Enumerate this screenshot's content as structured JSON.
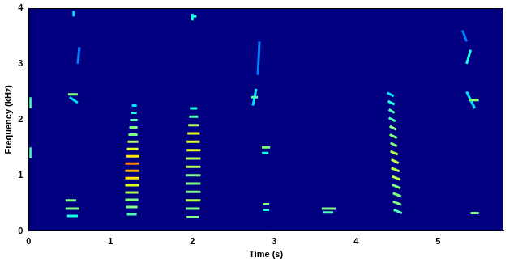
{
  "chart_data": {
    "type": "spectrogram",
    "x_label": "Time (s)",
    "y_label": "Frequency (kHz)",
    "xlim": [
      0,
      5.8
    ],
    "xticks": [
      0,
      1,
      2,
      3,
      4,
      5
    ],
    "ylim": [
      0,
      4
    ],
    "yticks": [
      0,
      1,
      2,
      3,
      4
    ],
    "zlim": [
      0,
      1
    ],
    "grid": false,
    "marks": [
      {
        "time": [
          0.02,
          0.02
        ],
        "frequency": [
          1.3,
          1.5
        ],
        "level": 0.45
      },
      {
        "time": [
          0.02,
          0.02
        ],
        "frequency": [
          2.2,
          2.4
        ],
        "level": 0.45
      },
      {
        "time": [
          0.45,
          0.58
        ],
        "frequency": [
          0.55,
          0.55
        ],
        "level": 0.5
      },
      {
        "time": [
          0.45,
          0.62
        ],
        "frequency": [
          0.4,
          0.4
        ],
        "level": 0.5
      },
      {
        "time": [
          0.47,
          0.6
        ],
        "frequency": [
          0.27,
          0.27
        ],
        "level": 0.4
      },
      {
        "time": [
          0.48,
          0.6
        ],
        "frequency": [
          2.45,
          2.45
        ],
        "level": 0.5
      },
      {
        "time": [
          0.5,
          0.6
        ],
        "frequency": [
          2.4,
          2.3
        ],
        "level": 0.35
      },
      {
        "time": [
          0.55,
          0.55
        ],
        "frequency": [
          3.85,
          3.95
        ],
        "level": 0.35
      },
      {
        "time": [
          0.6,
          0.62
        ],
        "frequency": [
          3.0,
          3.3
        ],
        "level": 0.25
      },
      {
        "time": [
          1.2,
          1.32
        ],
        "frequency": [
          0.3,
          0.3
        ],
        "level": 0.45
      },
      {
        "time": [
          1.19,
          1.33
        ],
        "frequency": [
          0.43,
          0.43
        ],
        "level": 0.5
      },
      {
        "time": [
          1.18,
          1.34
        ],
        "frequency": [
          0.56,
          0.56
        ],
        "level": 0.5
      },
      {
        "time": [
          1.18,
          1.34
        ],
        "frequency": [
          0.69,
          0.69
        ],
        "level": 0.55
      },
      {
        "time": [
          1.18,
          1.35
        ],
        "frequency": [
          0.82,
          0.82
        ],
        "level": 0.6
      },
      {
        "time": [
          1.18,
          1.35
        ],
        "frequency": [
          0.95,
          0.95
        ],
        "level": 0.65
      },
      {
        "time": [
          1.18,
          1.35
        ],
        "frequency": [
          1.08,
          1.08
        ],
        "level": 0.7
      },
      {
        "time": [
          1.18,
          1.35
        ],
        "frequency": [
          1.21,
          1.21
        ],
        "level": 0.75
      },
      {
        "time": [
          1.19,
          1.35
        ],
        "frequency": [
          1.34,
          1.34
        ],
        "level": 0.65
      },
      {
        "time": [
          1.2,
          1.34
        ],
        "frequency": [
          1.47,
          1.47
        ],
        "level": 0.6
      },
      {
        "time": [
          1.21,
          1.34
        ],
        "frequency": [
          1.6,
          1.6
        ],
        "level": 0.55
      },
      {
        "time": [
          1.22,
          1.33
        ],
        "frequency": [
          1.73,
          1.73
        ],
        "level": 0.5
      },
      {
        "time": [
          1.23,
          1.33
        ],
        "frequency": [
          1.86,
          1.86
        ],
        "level": 0.5
      },
      {
        "time": [
          1.24,
          1.33
        ],
        "frequency": [
          1.99,
          1.99
        ],
        "level": 0.45
      },
      {
        "time": [
          1.25,
          1.32
        ],
        "frequency": [
          2.12,
          2.12
        ],
        "level": 0.4
      },
      {
        "time": [
          1.26,
          1.32
        ],
        "frequency": [
          2.25,
          2.25
        ],
        "level": 0.35
      },
      {
        "time": [
          1.93,
          2.08
        ],
        "frequency": [
          0.25,
          0.25
        ],
        "level": 0.5
      },
      {
        "time": [
          1.92,
          2.09
        ],
        "frequency": [
          0.4,
          0.4
        ],
        "level": 0.5
      },
      {
        "time": [
          1.92,
          2.1
        ],
        "frequency": [
          0.55,
          0.55
        ],
        "level": 0.55
      },
      {
        "time": [
          1.92,
          2.1
        ],
        "frequency": [
          0.7,
          0.7
        ],
        "level": 0.5
      },
      {
        "time": [
          1.92,
          2.1
        ],
        "frequency": [
          0.85,
          0.85
        ],
        "level": 0.5
      },
      {
        "time": [
          1.92,
          2.1
        ],
        "frequency": [
          1.0,
          1.0
        ],
        "level": 0.5
      },
      {
        "time": [
          1.92,
          2.1
        ],
        "frequency": [
          1.15,
          1.15
        ],
        "level": 0.55
      },
      {
        "time": [
          1.92,
          2.1
        ],
        "frequency": [
          1.3,
          1.3
        ],
        "level": 0.55
      },
      {
        "time": [
          1.93,
          2.1
        ],
        "frequency": [
          1.45,
          1.45
        ],
        "level": 0.6
      },
      {
        "time": [
          1.93,
          2.09
        ],
        "frequency": [
          1.6,
          1.6
        ],
        "level": 0.6
      },
      {
        "time": [
          1.94,
          2.09
        ],
        "frequency": [
          1.75,
          1.75
        ],
        "level": 0.6
      },
      {
        "time": [
          1.95,
          2.08
        ],
        "frequency": [
          1.9,
          1.9
        ],
        "level": 0.55
      },
      {
        "time": [
          1.96,
          2.07
        ],
        "frequency": [
          2.05,
          2.05
        ],
        "level": 0.45
      },
      {
        "time": [
          1.97,
          2.06
        ],
        "frequency": [
          2.2,
          2.2
        ],
        "level": 0.4
      },
      {
        "time": [
          2.0,
          2.0
        ],
        "frequency": [
          3.78,
          3.9
        ],
        "level": 0.4
      },
      {
        "time": [
          2.0,
          2.05
        ],
        "frequency": [
          3.85,
          3.85
        ],
        "level": 0.4
      },
      {
        "time": [
          2.72,
          2.8
        ],
        "frequency": [
          2.4,
          2.4
        ],
        "level": 0.45
      },
      {
        "time": [
          2.74,
          2.78
        ],
        "frequency": [
          2.25,
          2.55
        ],
        "level": 0.35
      },
      {
        "time": [
          2.8,
          2.82
        ],
        "frequency": [
          2.8,
          3.4
        ],
        "level": 0.25
      },
      {
        "time": [
          2.85,
          2.95
        ],
        "frequency": [
          1.5,
          1.5
        ],
        "level": 0.5
      },
      {
        "time": [
          2.85,
          2.93
        ],
        "frequency": [
          1.4,
          1.4
        ],
        "level": 0.4
      },
      {
        "time": [
          2.86,
          2.94
        ],
        "frequency": [
          0.48,
          0.48
        ],
        "level": 0.5
      },
      {
        "time": [
          2.86,
          2.94
        ],
        "frequency": [
          0.38,
          0.38
        ],
        "level": 0.4
      },
      {
        "time": [
          3.58,
          3.75
        ],
        "frequency": [
          0.4,
          0.4
        ],
        "level": 0.5
      },
      {
        "time": [
          3.6,
          3.72
        ],
        "frequency": [
          0.33,
          0.33
        ],
        "level": 0.45
      },
      {
        "time": [
          4.46,
          4.56
        ],
        "frequency": [
          0.38,
          0.32
        ],
        "level": 0.45
      },
      {
        "time": [
          4.45,
          4.55
        ],
        "frequency": [
          0.53,
          0.47
        ],
        "level": 0.5
      },
      {
        "time": [
          4.45,
          4.55
        ],
        "frequency": [
          0.68,
          0.62
        ],
        "level": 0.5
      },
      {
        "time": [
          4.44,
          4.54
        ],
        "frequency": [
          0.83,
          0.77
        ],
        "level": 0.5
      },
      {
        "time": [
          4.44,
          4.54
        ],
        "frequency": [
          0.98,
          0.92
        ],
        "level": 0.55
      },
      {
        "time": [
          4.43,
          4.53
        ],
        "frequency": [
          1.13,
          1.07
        ],
        "level": 0.55
      },
      {
        "time": [
          4.43,
          4.52
        ],
        "frequency": [
          1.28,
          1.22
        ],
        "level": 0.55
      },
      {
        "time": [
          4.42,
          4.51
        ],
        "frequency": [
          1.43,
          1.37
        ],
        "level": 0.55
      },
      {
        "time": [
          4.42,
          4.5
        ],
        "frequency": [
          1.58,
          1.52
        ],
        "level": 0.5
      },
      {
        "time": [
          4.41,
          4.5
        ],
        "frequency": [
          1.73,
          1.67
        ],
        "level": 0.5
      },
      {
        "time": [
          4.41,
          4.49
        ],
        "frequency": [
          1.88,
          1.82
        ],
        "level": 0.5
      },
      {
        "time": [
          4.4,
          4.48
        ],
        "frequency": [
          2.03,
          1.97
        ],
        "level": 0.45
      },
      {
        "time": [
          4.4,
          4.47
        ],
        "frequency": [
          2.18,
          2.12
        ],
        "level": 0.45
      },
      {
        "time": [
          4.39,
          4.47
        ],
        "frequency": [
          2.33,
          2.27
        ],
        "level": 0.4
      },
      {
        "time": [
          4.38,
          4.46
        ],
        "frequency": [
          2.48,
          2.42
        ],
        "level": 0.35
      },
      {
        "time": [
          5.35,
          5.4
        ],
        "frequency": [
          3.0,
          3.25
        ],
        "level": 0.4
      },
      {
        "time": [
          5.38,
          5.5
        ],
        "frequency": [
          2.35,
          2.35
        ],
        "level": 0.5
      },
      {
        "time": [
          5.35,
          5.45
        ],
        "frequency": [
          2.5,
          2.2
        ],
        "level": 0.35
      },
      {
        "time": [
          5.4,
          5.5
        ],
        "frequency": [
          0.32,
          0.32
        ],
        "level": 0.5
      },
      {
        "time": [
          5.3,
          5.35
        ],
        "frequency": [
          3.6,
          3.4
        ],
        "level": 0.25
      }
    ]
  }
}
